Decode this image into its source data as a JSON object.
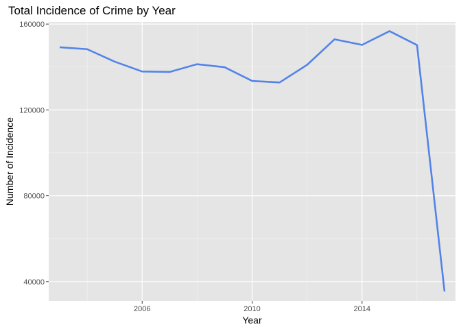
{
  "chart_data": {
    "type": "line",
    "title": "Total Incidence of Crime by Year",
    "xlabel": "Year",
    "ylabel": "Number of Incidence",
    "xlim": [
      2002.6,
      2017.4
    ],
    "ylim": [
      31000,
      161000
    ],
    "x_ticks": [
      2006,
      2010,
      2014
    ],
    "x_tick_labels": [
      "2006",
      "2010",
      "2014"
    ],
    "y_ticks": [
      40000,
      80000,
      120000,
      160000
    ],
    "y_tick_labels": [
      "40000",
      "80000",
      "120000",
      "160000"
    ],
    "grid": true,
    "legend": "none",
    "series": [
      {
        "color": "#5284E8",
        "x": [
          2003,
          2004,
          2005,
          2006,
          2007,
          2008,
          2009,
          2010,
          2011,
          2012,
          2013,
          2014,
          2015,
          2016,
          2017
        ],
        "y": [
          149200,
          148300,
          142500,
          137900,
          137700,
          141300,
          139900,
          133500,
          132800,
          141000,
          152900,
          150300,
          156700,
          150200,
          35400
        ]
      }
    ]
  },
  "colors": {
    "panel_background": "#e5e5e5",
    "grid_major": "#ffffff",
    "line": "#5284E8"
  }
}
